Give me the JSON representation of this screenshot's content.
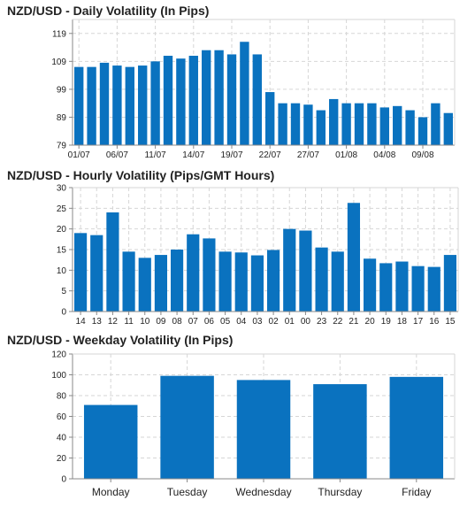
{
  "colors": {
    "bar": "#0a72bf",
    "grid": "#d6d6d6",
    "axis": "#888888",
    "text": "#222222"
  },
  "chart_data": [
    {
      "type": "bar",
      "title": "NZD/USD - Daily Volatility (In Pips)",
      "values": [
        107,
        107,
        108.5,
        107.5,
        107,
        107.5,
        109,
        111,
        110,
        111,
        113,
        113,
        111.5,
        116,
        111.5,
        98,
        94,
        94,
        93.5,
        91.5,
        95.5,
        94,
        94,
        94,
        92.5,
        93,
        91.5,
        89,
        94,
        90.5
      ],
      "x_tick_labels": [
        "01/07",
        "06/07",
        "11/07",
        "14/07",
        "19/07",
        "22/07",
        "27/07",
        "01/08",
        "04/08",
        "09/08"
      ],
      "x_tick_positions": [
        0,
        3,
        6,
        9,
        12,
        15,
        18,
        21,
        24,
        27
      ],
      "yticks": [
        79,
        89,
        99,
        109,
        119
      ],
      "ylim": [
        79,
        124
      ],
      "xlabel": "",
      "ylabel": "",
      "grid": true,
      "legend": "none"
    },
    {
      "type": "bar",
      "title": "NZD/USD - Hourly Volatility (Pips/GMT Hours)",
      "categories": [
        "14",
        "13",
        "12",
        "11",
        "10",
        "09",
        "08",
        "07",
        "06",
        "05",
        "04",
        "03",
        "02",
        "01",
        "00",
        "23",
        "22",
        "21",
        "20",
        "19",
        "18",
        "17",
        "16",
        "15"
      ],
      "values": [
        19,
        18.5,
        24,
        14.5,
        13,
        13.7,
        15,
        18.7,
        17.7,
        14.5,
        14.3,
        13.6,
        14.9,
        20,
        19.6,
        15.5,
        14.5,
        26.3,
        12.8,
        11.7,
        12.1,
        11,
        10.8,
        13.7
      ],
      "yticks": [
        0,
        5,
        10,
        15,
        20,
        25,
        30
      ],
      "ylim": [
        0,
        30
      ],
      "xlabel": "",
      "ylabel": "",
      "grid": true,
      "legend": "none"
    },
    {
      "type": "bar",
      "title": "NZD/USD - Weekday Volatility (In Pips)",
      "categories": [
        "Monday",
        "Tuesday",
        "Wednesday",
        "Thursday",
        "Friday"
      ],
      "values": [
        71,
        99,
        95,
        91,
        98
      ],
      "yticks": [
        0,
        20,
        40,
        60,
        80,
        100,
        120
      ],
      "ylim": [
        0,
        120
      ],
      "xlabel": "",
      "ylabel": "",
      "grid": true,
      "legend": "none"
    }
  ]
}
